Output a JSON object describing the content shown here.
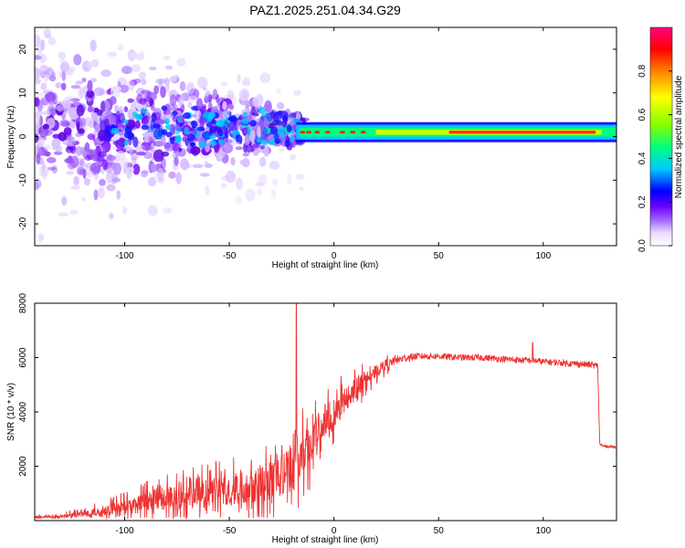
{
  "figure": {
    "title": "PAZ1.2025.251.04.34.G29"
  },
  "chart_data": [
    {
      "type": "heatmap",
      "title": "PAZ1.2025.251.04.34.G29",
      "xlabel": "Height of straight line (km)",
      "ylabel": "Frequency (Hz)",
      "xlim": [
        -143,
        135
      ],
      "ylim": [
        -25,
        25
      ],
      "x_ticks": [
        -100,
        -50,
        0,
        50,
        100
      ],
      "y_ticks": [
        -20,
        -10,
        0,
        10,
        20
      ],
      "colorbar": {
        "label": "Normalized spectral amplitude",
        "range": [
          0.0,
          1.0
        ],
        "ticks": [
          0.0,
          0.2,
          0.4,
          0.6,
          0.8
        ],
        "tick_labels": [
          "0.0",
          "0.2",
          "0.4",
          "0.6",
          "0.8"
        ],
        "colormap": [
          "#ffffff",
          "#e8d8ff",
          "#a060ff",
          "#6a00ff",
          "#0000ff",
          "#00c8ff",
          "#00ff80",
          "#80ff00",
          "#ffff00",
          "#ff8000",
          "#ff0000",
          "#ff0080"
        ]
      },
      "features": {
        "noisy_region_x": [
          -143,
          -18
        ],
        "noisy_freq_spread": [
          -25,
          25
        ],
        "stable_band_x": [
          -18,
          135
        ],
        "stable_band_freq": [
          -1,
          3
        ],
        "stable_band_center": 1
      }
    },
    {
      "type": "line",
      "xlabel": "Height of straight line (km)",
      "ylabel": "SNR (10 * v/v)",
      "xlim": [
        -143,
        135
      ],
      "ylim": [
        0,
        8000
      ],
      "x_ticks": [
        -100,
        -50,
        0,
        50,
        100
      ],
      "y_ticks": [
        2000,
        4000,
        6000,
        8000
      ],
      "color": "#ee3333",
      "series": [
        {
          "x": [
            -143,
            -130,
            -120,
            -110,
            -100,
            -90,
            -80,
            -70,
            -60,
            -50,
            -40,
            -30,
            -25,
            -20,
            -18,
            -15,
            -12,
            -10,
            -5,
            0,
            5,
            10,
            15,
            20,
            25,
            30,
            35,
            40,
            50,
            60,
            70,
            80,
            90,
            95,
            100,
            110,
            120,
            126,
            127,
            128,
            135
          ],
          "values": [
            120,
            150,
            250,
            350,
            500,
            650,
            800,
            900,
            1000,
            1100,
            1300,
            1500,
            1700,
            2000,
            2200,
            2400,
            2700,
            3000,
            3600,
            4000,
            4400,
            4800,
            5200,
            5500,
            5750,
            5900,
            6000,
            6050,
            6050,
            6000,
            6000,
            5950,
            5900,
            5900,
            5850,
            5800,
            5750,
            5700,
            2800,
            2750,
            2700
          ],
          "noise_amplitude": [
            100,
            150,
            250,
            400,
            600,
            800,
            1000,
            1100,
            1200,
            1300,
            1500,
            1700,
            1800,
            2000,
            2000,
            1800,
            1700,
            1600,
            1400,
            1300,
            1100,
            900,
            700,
            500,
            400,
            300,
            250,
            220,
            200,
            200,
            200,
            200,
            200,
            200,
            200,
            200,
            200,
            200,
            80,
            80,
            80
          ]
        }
      ],
      "peaks": [
        {
          "x": -18,
          "y": 8000
        },
        {
          "x": 95,
          "y": 6550
        }
      ]
    }
  ]
}
